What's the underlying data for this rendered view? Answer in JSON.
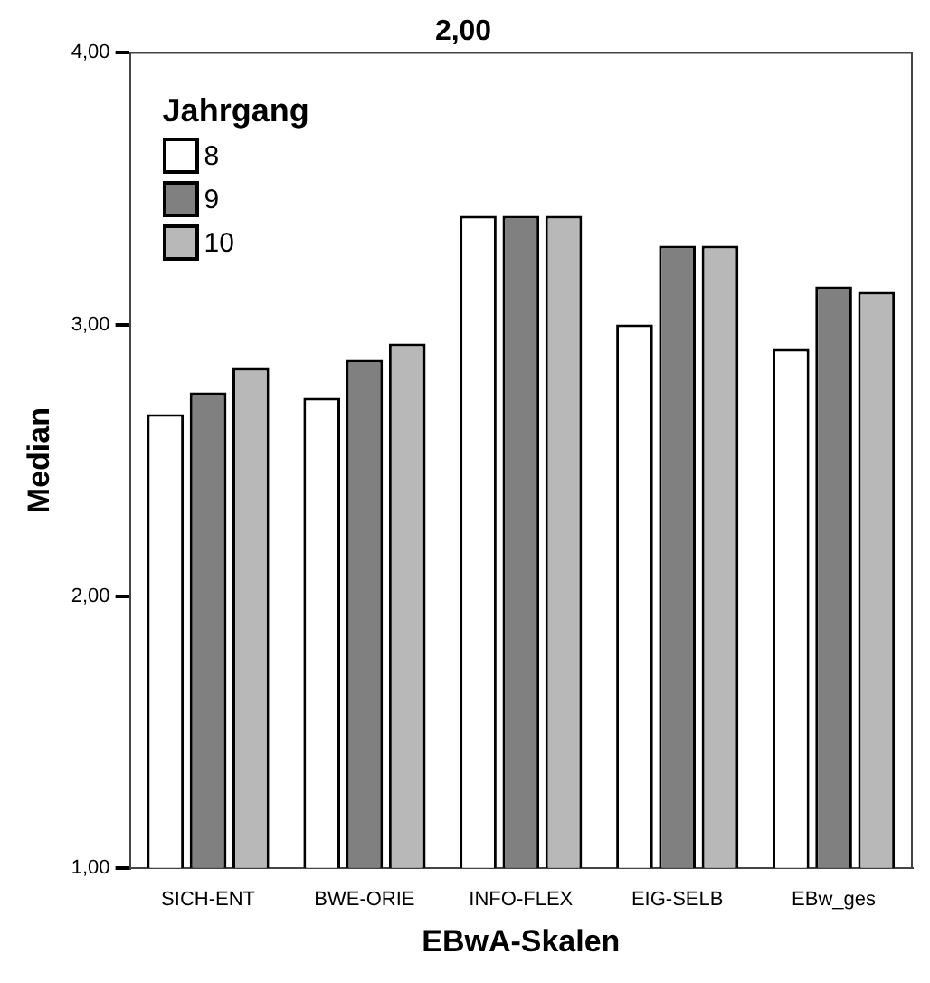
{
  "chart_data": {
    "type": "bar",
    "title": "2,00",
    "xlabel": "EBwA-Skalen",
    "ylabel": "Median",
    "legend_title": "Jahrgang",
    "legend": "top left",
    "grid": false,
    "categories": [
      "SICH-ENT",
      "BWE-ORIE",
      "INFO-FLEX",
      "EIG-SELB",
      "EBw_ges"
    ],
    "series": [
      {
        "name": "8",
        "color": "#ffffff",
        "values": [
          2.67,
          2.73,
          3.4,
          3.0,
          2.91
        ]
      },
      {
        "name": "9",
        "color": "#808080",
        "values": [
          2.75,
          2.87,
          3.4,
          3.29,
          3.14
        ]
      },
      {
        "name": "10",
        "color": "#b8b8b8",
        "values": [
          2.84,
          2.93,
          3.4,
          3.29,
          3.12
        ]
      }
    ],
    "ylim": [
      1,
      4
    ],
    "yticks": [
      {
        "value": 1,
        "label": "1,00"
      },
      {
        "value": 2,
        "label": "2,00"
      },
      {
        "value": 3,
        "label": "3,00"
      },
      {
        "value": 4,
        "label": "4,00"
      }
    ]
  }
}
